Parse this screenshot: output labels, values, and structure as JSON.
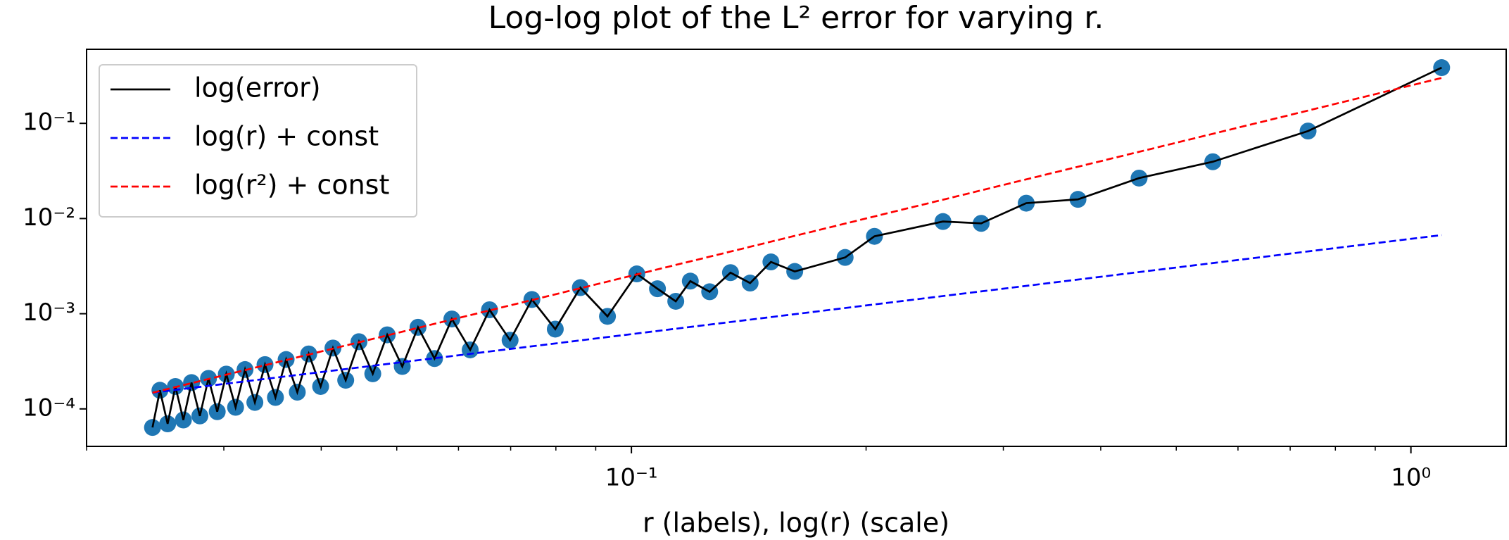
{
  "chart_data": {
    "type": "line",
    "title": "Log-log plot of the L² error for varying r.",
    "x_label": "r (labels), log(r) (scale)",
    "xscale": "log",
    "yscale": "log",
    "xlim": [
      0.02,
      1.325
    ],
    "ylim": [
      4.04e-05,
      0.6
    ],
    "xticks": [
      {
        "value": 0.1,
        "label": "10⁻¹"
      },
      {
        "value": 1,
        "label": "10⁰"
      }
    ],
    "xminorticks": [
      0.02,
      0.03,
      0.04,
      0.05,
      0.06,
      0.07,
      0.08,
      0.09,
      0.2,
      0.3,
      0.4,
      0.5,
      0.6,
      0.7,
      0.8,
      0.9
    ],
    "yticks": [
      {
        "value": 0.0001,
        "label": "10⁻⁴"
      },
      {
        "value": 0.001,
        "label": "10⁻³"
      },
      {
        "value": 0.01,
        "label": "10⁻²"
      },
      {
        "value": 0.1,
        "label": "10⁻¹"
      }
    ],
    "legend_position": "upper left",
    "series": [
      {
        "name": "log(error)",
        "color": "#000000",
        "marker_color": "#1f77b4",
        "dash": "solid",
        "x": [
          0.0243,
          0.02484,
          0.02541,
          0.026,
          0.02662,
          0.02727,
          0.02795,
          0.02867,
          0.02942,
          0.03022,
          0.03106,
          0.03194,
          0.03288,
          0.03388,
          0.03494,
          0.03606,
          0.03727,
          0.03855,
          0.03993,
          0.04141,
          0.043,
          0.04472,
          0.04658,
          0.04861,
          0.05082,
          0.05324,
          0.0559,
          0.05884,
          0.06211,
          0.06576,
          0.06988,
          0.07453,
          0.07986,
          0.086,
          0.09317,
          0.1016,
          0.108,
          0.114,
          0.119,
          0.126,
          0.134,
          0.142,
          0.151,
          0.162,
          0.188,
          0.205,
          0.251,
          0.281,
          0.321,
          0.374,
          0.448,
          0.557,
          0.738,
          1.095
        ],
        "values": [
          6.38e-05,
          0.000157,
          6.97e-05,
          0.000172,
          7.65e-05,
          0.000189,
          8.44e-05,
          0.000209,
          9.35e-05,
          0.000232,
          0.000104,
          0.000259,
          0.000117,
          0.000292,
          0.000132,
          0.00033,
          0.00015,
          0.000378,
          0.000172,
          0.000436,
          0.0002,
          0.000508,
          0.000234,
          0.0006,
          0.000279,
          0.00072,
          0.000338,
          0.00088,
          0.000417,
          0.0011,
          0.000527,
          0.00141,
          0.000689,
          0.00188,
          0.000938,
          0.00262,
          0.00183,
          0.00135,
          0.0022,
          0.0017,
          0.0027,
          0.0021,
          0.0035,
          0.00278,
          0.0039,
          0.0065,
          0.0093,
          0.0089,
          0.0145,
          0.0159,
          0.0266,
          0.0395,
          0.083,
          0.385
        ]
      },
      {
        "name": "log(r) + const",
        "color": "#0000ff",
        "dash": "dashed",
        "x": [
          0.0243,
          1.095
        ],
        "values": [
          0.000148,
          0.0067
        ]
      },
      {
        "name": "log(r²) + const",
        "color": "#ff0000",
        "dash": "dashed",
        "x": [
          0.0243,
          1.095
        ],
        "values": [
          0.000148,
          0.3
        ]
      }
    ]
  }
}
